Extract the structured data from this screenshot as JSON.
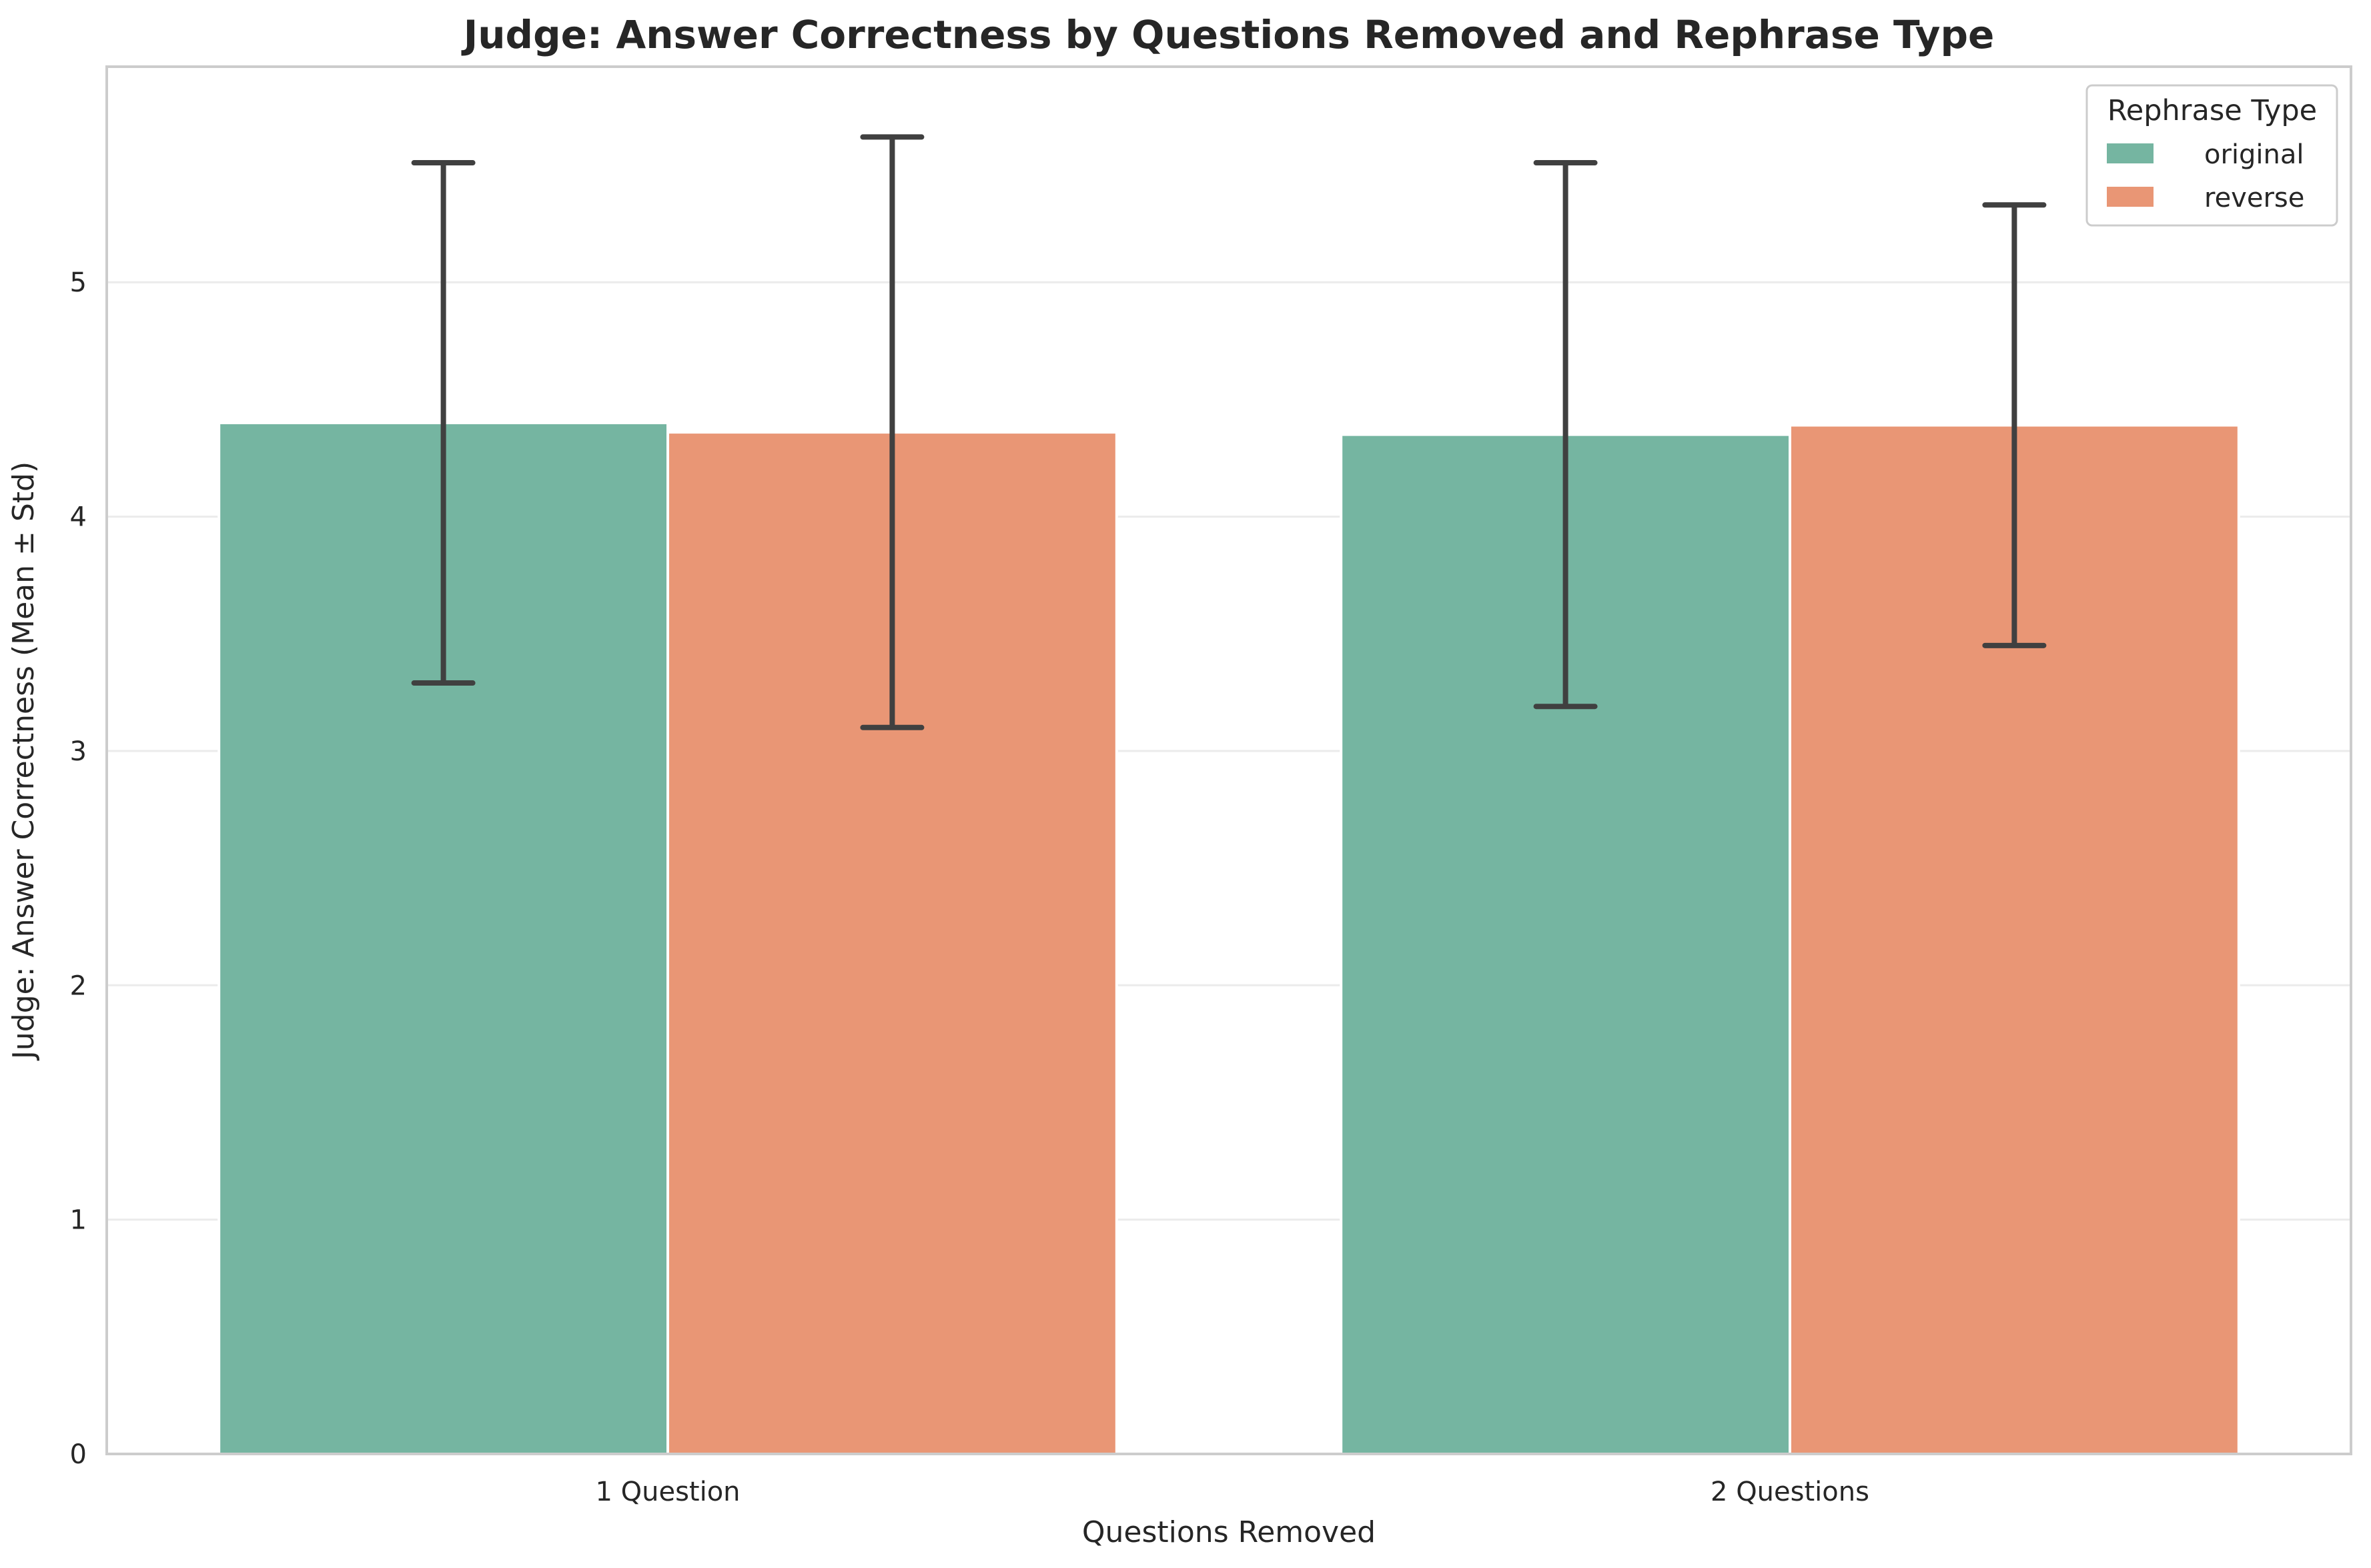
{
  "chart_data": {
    "type": "bar",
    "title": "Judge: Answer Correctness by Questions Removed and Rephrase Type",
    "xlabel": "Questions Removed",
    "ylabel": "Judge: Answer Correctness (Mean ± Std)",
    "categories": [
      "1 Question",
      "2 Questions"
    ],
    "series": [
      {
        "name": "original",
        "color": "#75b5a1",
        "values": [
          4.4,
          4.35
        ],
        "std": [
          1.11,
          1.16
        ]
      },
      {
        "name": "reverse",
        "color": "#e99675",
        "values": [
          4.36,
          4.39
        ],
        "std": [
          1.26,
          0.94
        ]
      }
    ],
    "ylim": [
      0,
      5.92
    ],
    "yticks": [
      "0",
      "1",
      "2",
      "3",
      "4",
      "5"
    ],
    "grid": "horizontal",
    "legend": {
      "title": "Rephrase Type",
      "position": "top-right"
    }
  }
}
